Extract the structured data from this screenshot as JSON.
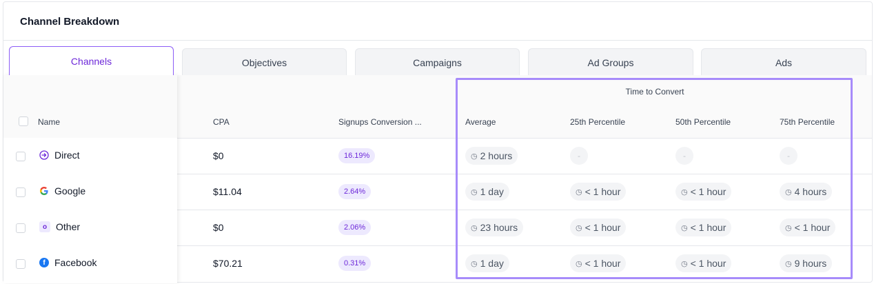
{
  "header": {
    "title": "Channel Breakdown"
  },
  "tabs": [
    {
      "label": "Channels"
    },
    {
      "label": "Objectives"
    },
    {
      "label": "Campaigns"
    },
    {
      "label": "Ad Groups"
    },
    {
      "label": "Ads"
    }
  ],
  "table": {
    "group_header": "Time to Convert",
    "columns": {
      "name": "Name",
      "cpa": "CPA",
      "conversion": "Signups Conversion ...",
      "average": "Average",
      "p25": "25th Percentile",
      "p50": "50th Percentile",
      "p75": "75th Percentile"
    },
    "rows": [
      {
        "name": "Direct",
        "icon": "arrow-circle-icon",
        "cpa": "$0",
        "conversion": "16.19%",
        "average": "2 hours",
        "p25": "-",
        "p50": "-",
        "p75": "-"
      },
      {
        "name": "Google",
        "icon": "google-icon",
        "cpa": "$11.04",
        "conversion": "2.64%",
        "average": "1 day",
        "p25": "< 1 hour",
        "p50": "< 1 hour",
        "p75": "4 hours"
      },
      {
        "name": "Other",
        "icon": "other-o-icon",
        "icon_letter": "o",
        "cpa": "$0",
        "conversion": "2.06%",
        "average": "23 hours",
        "p25": "< 1 hour",
        "p50": "< 1 hour",
        "p75": "< 1 hour"
      },
      {
        "name": "Facebook",
        "icon": "facebook-icon",
        "icon_letter": "f",
        "cpa": "$70.21",
        "conversion": "0.31%",
        "average": "1 day",
        "p25": "< 1 hour",
        "p50": "< 1 hour",
        "p75": "9 hours"
      }
    ]
  },
  "colors": {
    "accent": "#8b5cf6",
    "highlight_border": "#a78bfa",
    "badge_bg": "#ede9fe",
    "badge_text": "#6d28d9"
  }
}
